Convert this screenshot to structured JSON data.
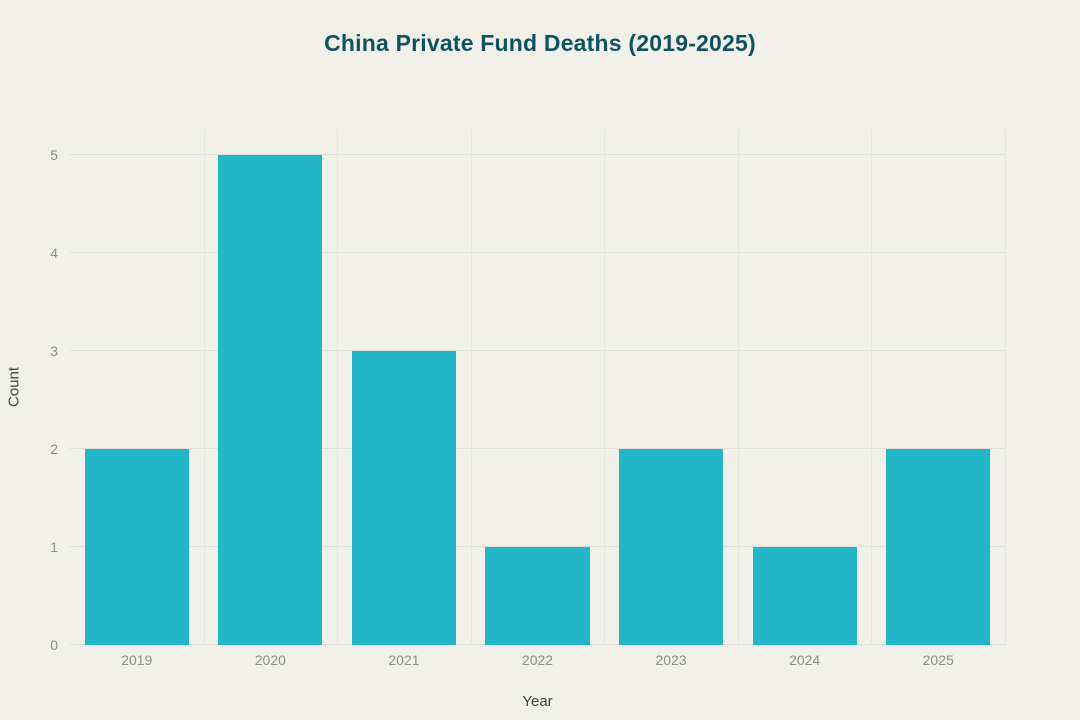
{
  "chart_data": {
    "type": "bar",
    "title": "China Private Fund Deaths (2019-2025)",
    "categories": [
      "2019",
      "2020",
      "2021",
      "2022",
      "2023",
      "2024",
      "2025"
    ],
    "values": [
      2,
      5,
      3,
      1,
      2,
      1,
      2
    ],
    "xlabel": "Year",
    "ylabel": "Count",
    "ylim": [
      0,
      5.25
    ],
    "yticks": [
      0,
      1,
      2,
      3,
      4,
      5
    ],
    "grid": true,
    "legend": false,
    "colors": {
      "bar": "#23b5c8",
      "background": "#f1f1ea",
      "title": "#0d5463",
      "tick_label": "#8d8d89",
      "axis_title": "#3c4246",
      "gridline": "#dedfd6"
    }
  }
}
